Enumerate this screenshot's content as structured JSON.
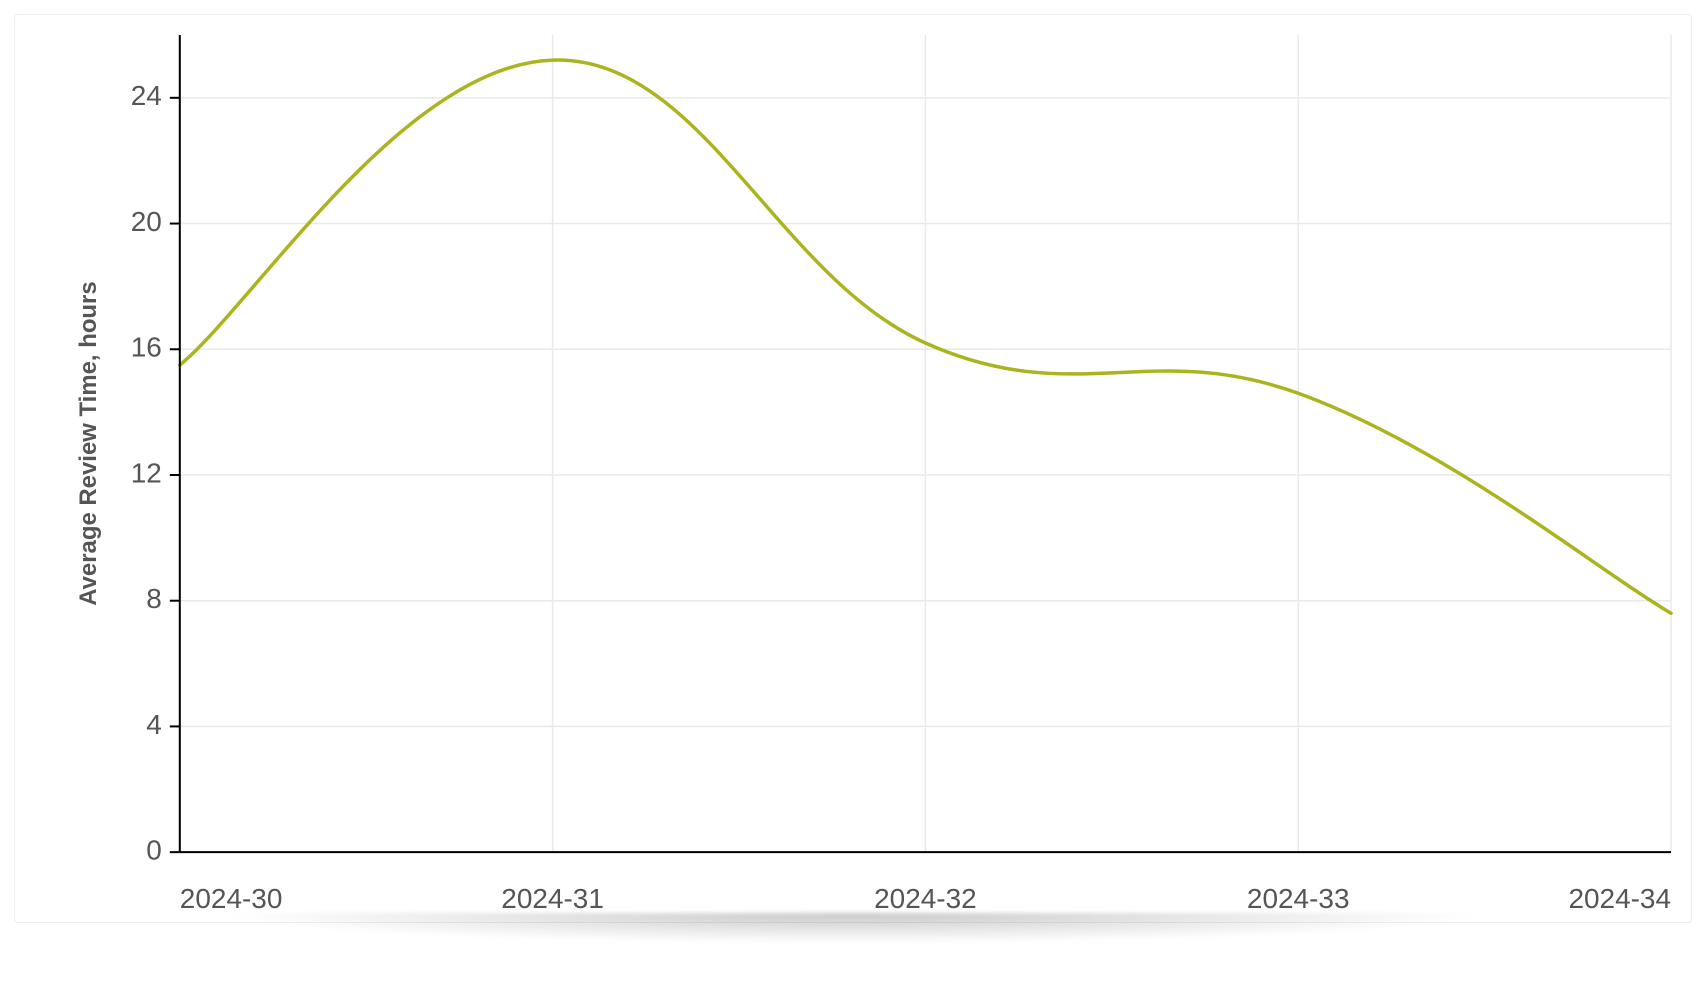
{
  "chart": {
    "type": "line",
    "ylabel": "Average Review Time, hours",
    "x_categories": [
      "2024-30",
      "2024-31",
      "2024-32",
      "2024-33",
      "2024-34"
    ],
    "y_values": [
      15.5,
      25.2,
      16.2,
      14.6,
      7.6
    ],
    "ylim": [
      0,
      26
    ],
    "y_ticks": [
      0,
      4,
      8,
      12,
      16,
      20,
      24
    ],
    "line_color": "#aab41e",
    "line_width": 3.5,
    "axis_color": "#000000",
    "grid_color": "#e9e9e9",
    "background_color": "#ffffff",
    "tick_font_size": 28,
    "tick_font_color": "#555555",
    "ylabel_font_size": 24,
    "ylabel_font_weight": "bold",
    "ylabel_font_color": "#555555",
    "card_border_color": "#eeeeee",
    "smooth": true,
    "y_tick_len": 10,
    "tick_font_family": "Helvetica Neue, Helvetica, Arial, sans-serif"
  }
}
